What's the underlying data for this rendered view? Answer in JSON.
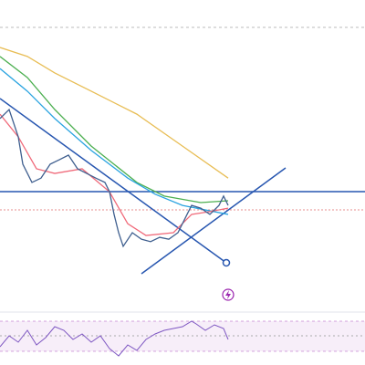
{
  "chart_data": {
    "type": "line",
    "xlim": [
      0,
      80
    ],
    "ylim": [
      0,
      100
    ],
    "series": [
      {
        "color": "#e8bd54",
        "x": [
          0,
          6,
          12,
          20,
          30,
          40,
          50
        ],
        "values": [
          84.7,
          81.8,
          76.5,
          70.6,
          63.2,
          52.9,
          42.6
        ]
      },
      {
        "color": "#4caf50",
        "x": [
          0,
          6,
          12,
          20,
          30,
          36,
          44,
          50
        ],
        "values": [
          81.8,
          75,
          64.7,
          52.9,
          41.2,
          36.8,
          34.7,
          35.3
        ]
      },
      {
        "color": "#29a3e0",
        "x": [
          0,
          6,
          12,
          20,
          28,
          34,
          40,
          50
        ],
        "values": [
          77.9,
          70.6,
          61.8,
          51.5,
          42.6,
          37.4,
          33.8,
          30.9
        ]
      },
      {
        "color": "#f06a7a",
        "x": [
          0,
          4,
          8,
          12,
          18,
          24,
          28,
          32,
          38,
          42,
          46,
          50
        ],
        "values": [
          63.2,
          55.9,
          45.6,
          44.1,
          45.6,
          38.2,
          27.9,
          24.1,
          25,
          30.9,
          31.8,
          32.9
        ]
      },
      {
        "color": "#3f5f8f",
        "x": [
          0,
          2,
          4,
          5,
          7,
          9,
          11,
          13,
          15,
          17,
          19,
          21,
          23,
          24,
          25,
          26,
          27,
          29,
          31,
          33,
          35,
          37,
          39,
          41,
          42,
          44,
          46,
          48,
          49,
          50
        ],
        "values": [
          61.8,
          64.7,
          55.9,
          47.1,
          41.2,
          42.6,
          47.1,
          48.5,
          50,
          45.6,
          44.1,
          42.6,
          41.2,
          38.2,
          30.9,
          25,
          20.6,
          25,
          22.9,
          22.1,
          23.5,
          22.9,
          25,
          30.9,
          33.8,
          32.9,
          30.9,
          33.8,
          36.8,
          33.8
        ]
      }
    ]
  }
}
